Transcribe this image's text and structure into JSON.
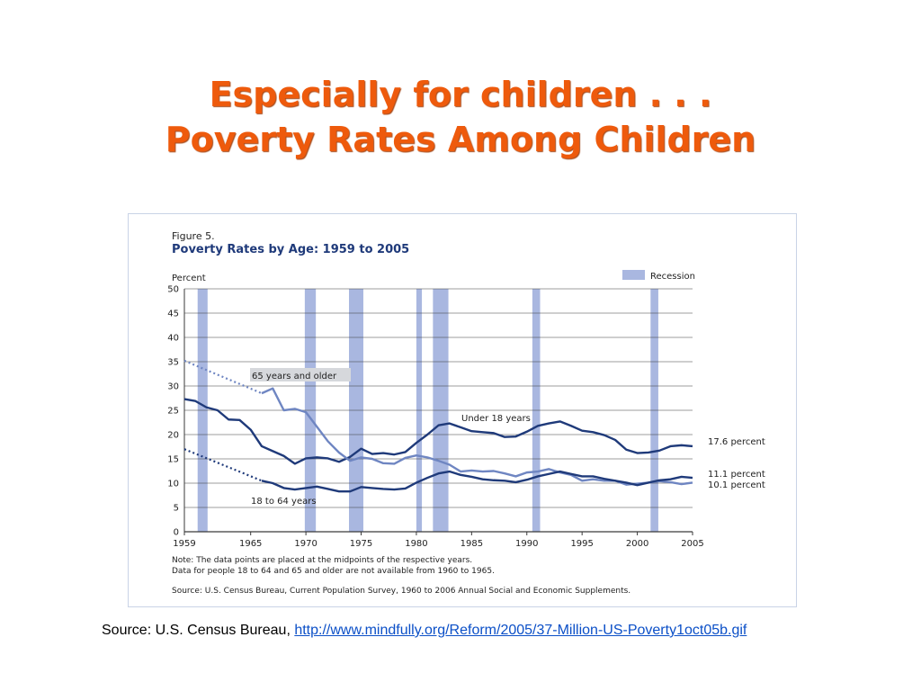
{
  "slide": {
    "title_line1": "Especially for children . . .",
    "title_line2": "Poverty Rates Among Children",
    "source_prefix": "Source: U.S. Census Bureau, ",
    "source_link": "http://www.mindfully.org/Reform/2005/37-Million-US-Poverty1oct05b.gif"
  },
  "colors": {
    "title": "#ee5a0c",
    "dark_series": "#1f3a7a",
    "light_series": "#6f86c2",
    "recession": "#a9b7e0",
    "figure_title": "#1f3a7a",
    "grid": "#3a3a3a"
  },
  "chart_data": {
    "type": "line",
    "figure_label": "Figure 5.",
    "title": "Poverty Rates by Age:  1959 to 2005",
    "ylabel": "Percent",
    "xlim": [
      1959,
      2005
    ],
    "ylim": [
      0,
      50
    ],
    "yticks": [
      0,
      5,
      10,
      15,
      20,
      25,
      30,
      35,
      40,
      45,
      50
    ],
    "xticks": [
      1959,
      1965,
      1970,
      1975,
      1980,
      1985,
      1990,
      1995,
      2000,
      2005
    ],
    "grid": true,
    "legend": {
      "label": "Recession",
      "placement": "top-right"
    },
    "recessions": [
      [
        1960.2,
        1961.1
      ],
      [
        1969.9,
        1970.9
      ],
      [
        1973.9,
        1975.2
      ],
      [
        1980.0,
        1980.5
      ],
      [
        1981.5,
        1982.9
      ],
      [
        1990.5,
        1991.2
      ],
      [
        2001.2,
        2001.9
      ]
    ],
    "series": [
      {
        "name": "Under 18 years",
        "style": "dark",
        "x": [
          1959,
          1960,
          1961,
          1962,
          1963,
          1964,
          1965,
          1966,
          1967,
          1968,
          1969,
          1970,
          1971,
          1972,
          1973,
          1974,
          1975,
          1976,
          1977,
          1978,
          1979,
          1980,
          1981,
          1982,
          1983,
          1984,
          1985,
          1986,
          1987,
          1988,
          1989,
          1990,
          1991,
          1992,
          1993,
          1994,
          1995,
          1996,
          1997,
          1998,
          1999,
          2000,
          2001,
          2002,
          2003,
          2004,
          2005
        ],
        "values": [
          27.3,
          26.9,
          25.6,
          25.0,
          23.1,
          23.0,
          21.0,
          17.6,
          16.6,
          15.6,
          14.0,
          15.1,
          15.3,
          15.1,
          14.4,
          15.4,
          17.1,
          16.0,
          16.2,
          15.9,
          16.4,
          18.3,
          20.0,
          21.9,
          22.3,
          21.5,
          20.7,
          20.5,
          20.3,
          19.5,
          19.6,
          20.6,
          21.8,
          22.3,
          22.7,
          21.8,
          20.8,
          20.5,
          19.9,
          18.9,
          16.9,
          16.2,
          16.3,
          16.7,
          17.6,
          17.8,
          17.6
        ],
        "end_label": "17.6 percent"
      },
      {
        "name": "65 years and older",
        "style": "light",
        "dotted_x": [
          1959,
          1966
        ],
        "dotted_values": [
          35.2,
          28.5
        ],
        "x": [
          1966,
          1967,
          1968,
          1969,
          1970,
          1971,
          1972,
          1973,
          1974,
          1975,
          1976,
          1977,
          1978,
          1979,
          1980,
          1981,
          1982,
          1983,
          1984,
          1985,
          1986,
          1987,
          1988,
          1989,
          1990,
          1991,
          1992,
          1993,
          1994,
          1995,
          1996,
          1997,
          1998,
          1999,
          2000,
          2001,
          2002,
          2003,
          2004,
          2005
        ],
        "values": [
          28.5,
          29.5,
          25.0,
          25.3,
          24.6,
          21.6,
          18.6,
          16.3,
          14.6,
          15.3,
          15.0,
          14.1,
          14.0,
          15.2,
          15.7,
          15.3,
          14.6,
          13.8,
          12.4,
          12.6,
          12.4,
          12.5,
          12.0,
          11.4,
          12.2,
          12.4,
          12.9,
          12.2,
          11.7,
          10.5,
          10.8,
          10.5,
          10.5,
          9.7,
          9.9,
          10.1,
          10.4,
          10.2,
          9.8,
          10.1
        ],
        "end_label": "10.1 percent"
      },
      {
        "name": "18 to 64 years",
        "style": "dark",
        "dotted_x": [
          1959,
          1966
        ],
        "dotted_values": [
          17.0,
          10.5
        ],
        "x": [
          1966,
          1967,
          1968,
          1969,
          1970,
          1971,
          1972,
          1973,
          1974,
          1975,
          1976,
          1977,
          1978,
          1979,
          1980,
          1981,
          1982,
          1983,
          1984,
          1985,
          1986,
          1987,
          1988,
          1989,
          1990,
          1991,
          1992,
          1993,
          1994,
          1995,
          1996,
          1997,
          1998,
          1999,
          2000,
          2001,
          2002,
          2003,
          2004,
          2005
        ],
        "values": [
          10.5,
          10.0,
          9.0,
          8.7,
          9.0,
          9.3,
          8.8,
          8.3,
          8.3,
          9.2,
          9.0,
          8.8,
          8.7,
          8.9,
          10.1,
          11.1,
          12.0,
          12.4,
          11.7,
          11.3,
          10.8,
          10.6,
          10.5,
          10.2,
          10.7,
          11.4,
          11.9,
          12.4,
          11.9,
          11.4,
          11.4,
          10.9,
          10.5,
          10.1,
          9.6,
          10.1,
          10.6,
          10.8,
          11.3,
          11.1
        ],
        "end_label": "11.1 percent"
      }
    ],
    "notes": [
      "Note:  The data points are placed at the midpoints of the respective years.",
      "Data for people 18 to 64 and 65 and older are not available from 1960 to 1965.",
      "Source:  U.S. Census Bureau, Current Population Survey, 1960 to 2006 Annual Social and Economic Supplements."
    ]
  }
}
